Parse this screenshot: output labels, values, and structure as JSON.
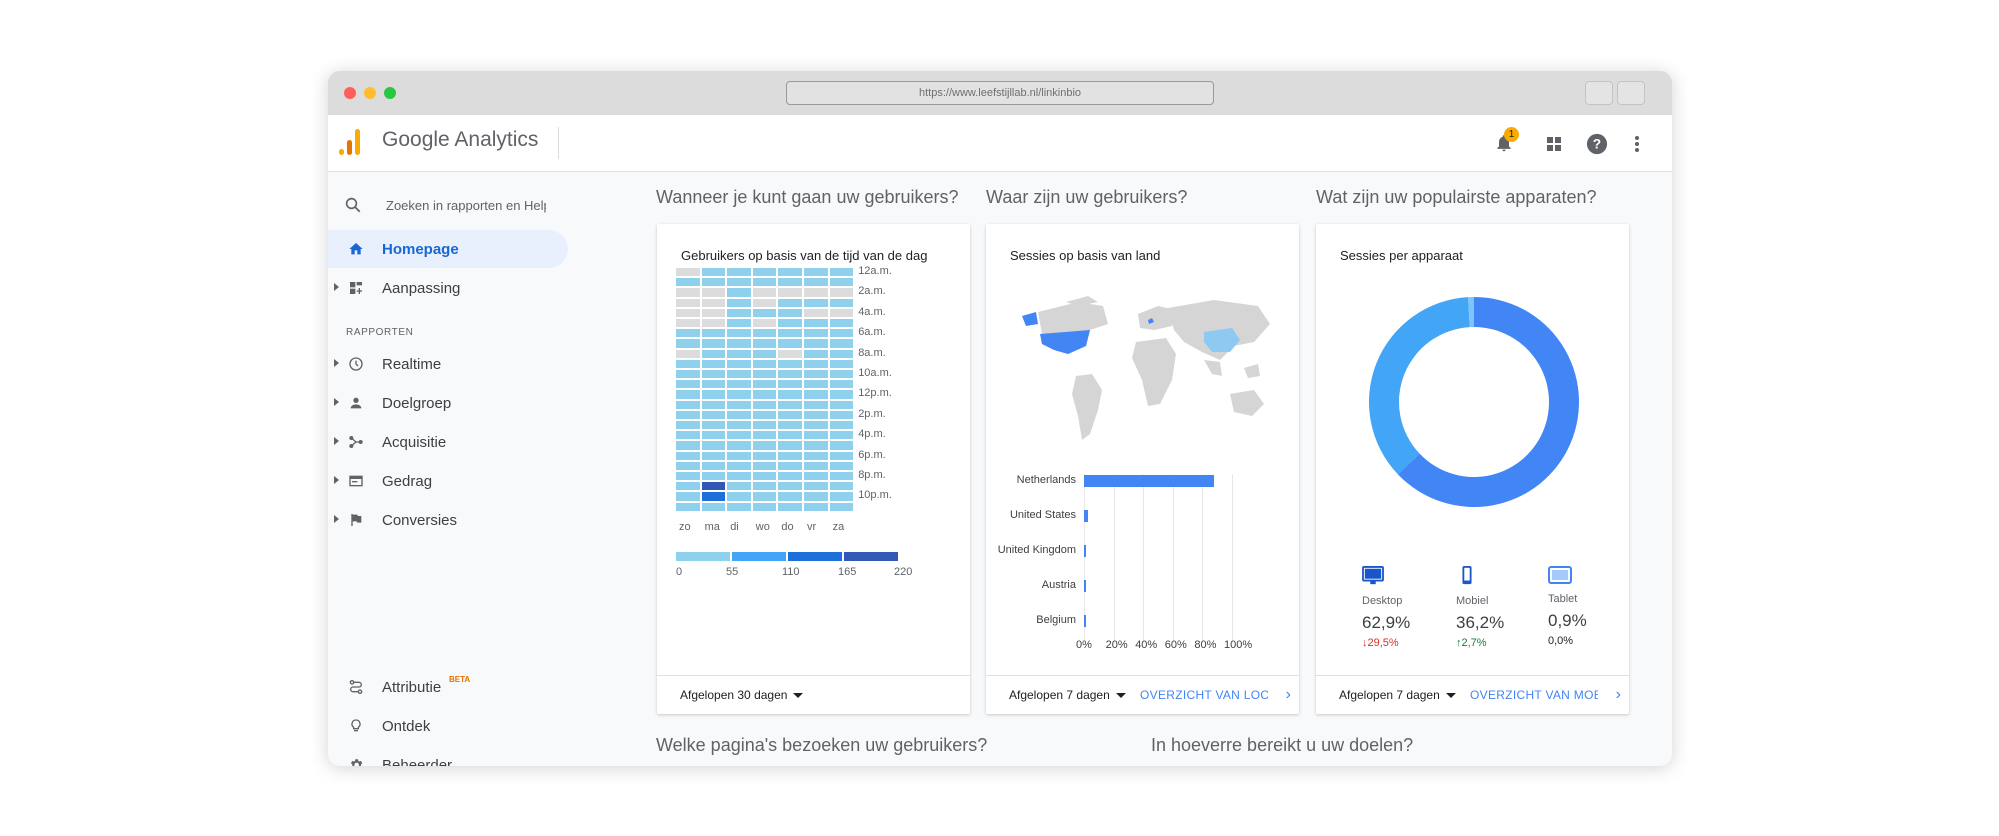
{
  "browser": {
    "url": "https://www.leefstijllab.nl/linkinbio"
  },
  "app": {
    "title": "Google Analytics",
    "notification_count": "1"
  },
  "sidebar": {
    "search_placeholder": "Zoeken in rapporten en Help",
    "section_label": "RAPPORTEN",
    "items": [
      {
        "label": "Homepage",
        "icon": "home-icon",
        "active": true
      },
      {
        "label": "Aanpassing",
        "icon": "dashboard-icon"
      },
      {
        "label": "Realtime",
        "icon": "clock-icon"
      },
      {
        "label": "Doelgroep",
        "icon": "person-icon"
      },
      {
        "label": "Acquisitie",
        "icon": "share-icon"
      },
      {
        "label": "Gedrag",
        "icon": "window-icon"
      },
      {
        "label": "Conversies",
        "icon": "flag-icon"
      }
    ],
    "bottom_items": [
      {
        "label": "Attributie",
        "badge": "BETA",
        "icon": "route-icon"
      },
      {
        "label": "Ontdek",
        "icon": "lightbulb-icon"
      },
      {
        "label": "Beheerder",
        "icon": "gear-icon"
      }
    ]
  },
  "headings": {
    "h1": "Wanneer je kunt gaan uw gebruikers?",
    "h2": "Waar zijn uw gebruikers?",
    "h3": "Wat zijn uw populairste apparaten?",
    "h4": "Welke pagina's bezoeken uw gebruikers?",
    "h5": "In hoeverre bereikt u uw doelen?"
  },
  "cards": {
    "heatmap": {
      "title": "Gebruikers op basis van de tijd van de dag",
      "footer": "Afgelopen 30 dagen",
      "time_labels": [
        "12a.m.",
        "2a.m.",
        "4a.m.",
        "6a.m.",
        "8a.m.",
        "10a.m.",
        "12p.m.",
        "2p.m.",
        "4p.m.",
        "6p.m.",
        "8p.m.",
        "10p.m."
      ],
      "day_labels": [
        "zo",
        "ma",
        "di",
        "wo",
        "do",
        "vr",
        "za"
      ],
      "legend_values": [
        "0",
        "55",
        "110",
        "165",
        "220"
      ],
      "legend_colors": [
        "#8fd1ec",
        "#42a5f5",
        "#1e6fd9",
        "#3158b5"
      ]
    },
    "countries": {
      "title": "Sessies op basis van land",
      "footer": "Afgelopen 7 dagen",
      "link": "OVERZICHT VAN LOCATIES"
    },
    "devices": {
      "title": "Sessies per apparaat",
      "footer": "Afgelopen 7 dagen",
      "link": "OVERZICHT VAN MOBIEL",
      "items": [
        {
          "name": "Desktop",
          "value": "62,9%",
          "change": "29,5%",
          "direction": "down",
          "icon": "desktop-icon"
        },
        {
          "name": "Mobiel",
          "value": "36,2%",
          "change": "2,7%",
          "direction": "up",
          "icon": "phone-icon"
        },
        {
          "name": "Tablet",
          "value": "0,9%",
          "change": "0,0%",
          "direction": "none",
          "icon": "tablet-icon"
        }
      ]
    }
  },
  "chart_data": [
    {
      "type": "heatmap",
      "title": "Gebruikers op basis van de tijd van de dag",
      "x": [
        "zo",
        "ma",
        "di",
        "wo",
        "do",
        "vr",
        "za"
      ],
      "y_ticks": [
        "12a.m.",
        "2a.m.",
        "4a.m.",
        "6a.m.",
        "8a.m.",
        "10a.m.",
        "12p.m.",
        "2p.m.",
        "4p.m.",
        "6p.m.",
        "8p.m.",
        "10p.m."
      ],
      "legend": [
        0,
        55,
        110,
        165,
        220
      ],
      "hours": 24,
      "levels_by_hour": [
        [
          0,
          1,
          1,
          1,
          1,
          1,
          1
        ],
        [
          1,
          1,
          1,
          1,
          1,
          1,
          1
        ],
        [
          0,
          0,
          1,
          0,
          0,
          0,
          0
        ],
        [
          0,
          0,
          1,
          0,
          1,
          1,
          1
        ],
        [
          0,
          0,
          1,
          1,
          1,
          0,
          0
        ],
        [
          0,
          0,
          1,
          0,
          1,
          1,
          1
        ],
        [
          1,
          1,
          1,
          1,
          1,
          1,
          1
        ],
        [
          1,
          1,
          1,
          1,
          1,
          1,
          1
        ],
        [
          0,
          1,
          1,
          1,
          0,
          1,
          1
        ],
        [
          1,
          1,
          1,
          1,
          1,
          1,
          1
        ],
        [
          1,
          1,
          1,
          1,
          1,
          1,
          1
        ],
        [
          1,
          1,
          1,
          1,
          1,
          1,
          1
        ],
        [
          1,
          1,
          1,
          1,
          1,
          1,
          1
        ],
        [
          1,
          1,
          1,
          1,
          1,
          1,
          1
        ],
        [
          1,
          1,
          1,
          1,
          1,
          1,
          1
        ],
        [
          1,
          1,
          1,
          1,
          1,
          1,
          1
        ],
        [
          1,
          1,
          1,
          1,
          1,
          1,
          1
        ],
        [
          1,
          1,
          1,
          1,
          1,
          1,
          1
        ],
        [
          1,
          1,
          1,
          1,
          1,
          1,
          1
        ],
        [
          1,
          1,
          1,
          1,
          1,
          1,
          1
        ],
        [
          1,
          1,
          1,
          1,
          1,
          1,
          1
        ],
        [
          1,
          4,
          1,
          1,
          1,
          1,
          1
        ],
        [
          1,
          3,
          1,
          1,
          1,
          1,
          1
        ],
        [
          1,
          1,
          1,
          1,
          1,
          1,
          1
        ]
      ]
    },
    {
      "type": "bar",
      "title": "Sessies op basis van land",
      "categories": [
        "Netherlands",
        "United States",
        "United Kingdom",
        "Austria",
        "Belgium"
      ],
      "values": [
        88,
        3,
        1.5,
        1,
        0.8
      ],
      "x_ticks": [
        "0%",
        "20%",
        "40%",
        "60%",
        "80%",
        "100%"
      ],
      "xlim": [
        0,
        100
      ]
    },
    {
      "type": "pie",
      "title": "Sessies per apparaat",
      "categories": [
        "Desktop",
        "Mobiel",
        "Tablet"
      ],
      "values": [
        62.9,
        36.2,
        0.9
      ],
      "colors": [
        "#4285f4",
        "#42a5f5",
        "#7fc4f8"
      ]
    }
  ]
}
